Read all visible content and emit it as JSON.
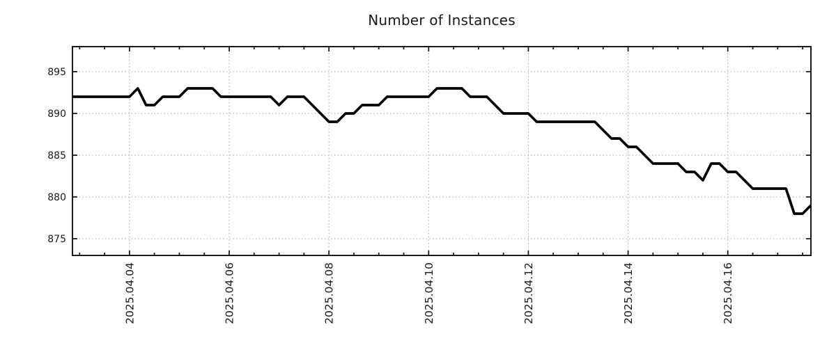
{
  "colors": {
    "line": "#000000",
    "grid": "#aaaaaa",
    "axis": "#1a1a1a",
    "text": "#1a1a1a",
    "background": "#ffffff"
  },
  "chart_data": {
    "type": "line",
    "title": "Number of Instances",
    "series_name": "instances",
    "grid": true,
    "legend": "none",
    "x_axis": {
      "tick_labels": [
        "2025.04.04",
        "2025.04.06",
        "2025.04.08",
        "2025.04.10",
        "2025.04.12",
        "2025.04.14",
        "2025.04.16"
      ],
      "major_tick_days": [
        0,
        2,
        4,
        6,
        8,
        10,
        12
      ],
      "minor_tick_step_days": 0.5,
      "lim_days": [
        -1.144,
        13.667
      ],
      "label_rotation_deg": -90
    },
    "y_axis": {
      "ticks": [
        875,
        880,
        885,
        890,
        895
      ],
      "lim": [
        873,
        898
      ]
    },
    "samples": {
      "start": "2025-04-02 20:00",
      "start_offset_days": -1.16667,
      "interval_hours": 4,
      "values": [
        892,
        892,
        892,
        892,
        892,
        892,
        892,
        892,
        893,
        891,
        891,
        892,
        892,
        892,
        893,
        893,
        893,
        893,
        892,
        892,
        892,
        892,
        892,
        892,
        892,
        891,
        892,
        892,
        892,
        891,
        890,
        889,
        889,
        890,
        890,
        891,
        891,
        891,
        892,
        892,
        892,
        892,
        892,
        892,
        893,
        893,
        893,
        893,
        892,
        892,
        892,
        891,
        890,
        890,
        890,
        890,
        889,
        889,
        889,
        889,
        889,
        889,
        889,
        889,
        888,
        887,
        887,
        886,
        886,
        885,
        884,
        884,
        884,
        884,
        883,
        883,
        882,
        884,
        884,
        883,
        883,
        882,
        881,
        881,
        881,
        881,
        881,
        878,
        878,
        879
      ]
    }
  }
}
